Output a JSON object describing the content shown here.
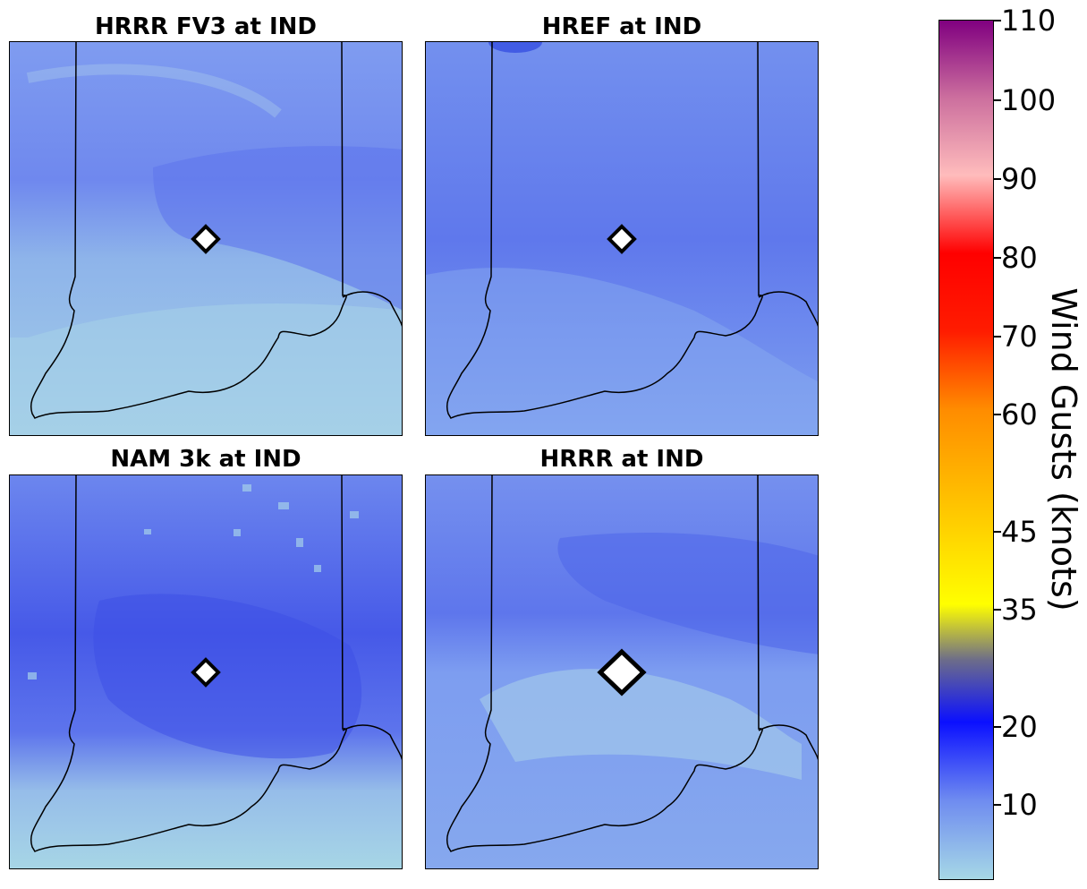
{
  "panels": [
    {
      "title": "HRRR FV3 at IND",
      "marker_size": "small",
      "fill": "fv3"
    },
    {
      "title": "HREF at IND",
      "marker_size": "small",
      "fill": "href"
    },
    {
      "title": "NAM 3k at IND",
      "marker_size": "small",
      "fill": "nam"
    },
    {
      "title": "HRRR at IND",
      "marker_size": "large",
      "fill": "hrrr"
    }
  ],
  "colorbar": {
    "label": "Wind Gusts (knots)",
    "ticks": [
      "110",
      "100",
      "90",
      "80",
      "70",
      "60",
      "45",
      "35",
      "20",
      "10"
    ],
    "colors": {
      "c_low": "#a6d8e6",
      "c_10": "#6f8cf0",
      "c_20": "#0b10ff",
      "c_28": "#6c6c8a",
      "c_35": "#ffff00",
      "c_45": "#ffd000",
      "c_60": "#ff8c00",
      "c_70": "#ff1c00",
      "c_80": "#ff0000",
      "c_90": "#ffbcbc",
      "c_100": "#cc6f9e",
      "c_110": "#800080"
    }
  },
  "station": "IND"
}
